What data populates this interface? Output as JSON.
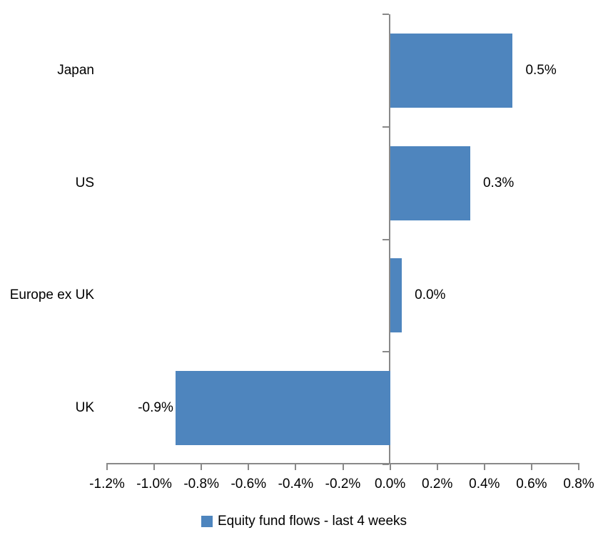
{
  "chart_data": {
    "type": "bar",
    "orientation": "horizontal",
    "title": "",
    "categories": [
      "Japan",
      "US",
      "Europe ex UK",
      "UK"
    ],
    "values": [
      0.52,
      0.34,
      0.05,
      -0.91
    ],
    "value_labels": [
      "0.5%",
      "0.3%",
      "0.0%",
      "-0.9%"
    ],
    "series": [
      {
        "name": "Equity fund flows - last 4 weeks",
        "values": [
          0.52,
          0.34,
          0.05,
          -0.91
        ]
      }
    ],
    "xlim": [
      -1.2,
      0.8
    ],
    "x_tick_values": [
      -1.2,
      -1.0,
      -0.8,
      -0.6,
      -0.4,
      -0.2,
      0.0,
      0.2,
      0.4,
      0.6,
      0.8
    ],
    "x_tick_labels": [
      "-1.2%",
      "-1.0%",
      "-0.8%",
      "-0.6%",
      "-0.4%",
      "-0.2%",
      "0.0%",
      "0.2%",
      "0.4%",
      "0.6%",
      "0.8%"
    ],
    "xlabel": "",
    "ylabel": "",
    "grid": false,
    "legend_position": "bottom",
    "colors": {
      "bar": "#4E85BE",
      "axis": "#898989",
      "text": "#000000",
      "background": "#FFFFFF"
    }
  },
  "legend": {
    "label": "Equity fund flows - last 4 weeks"
  }
}
